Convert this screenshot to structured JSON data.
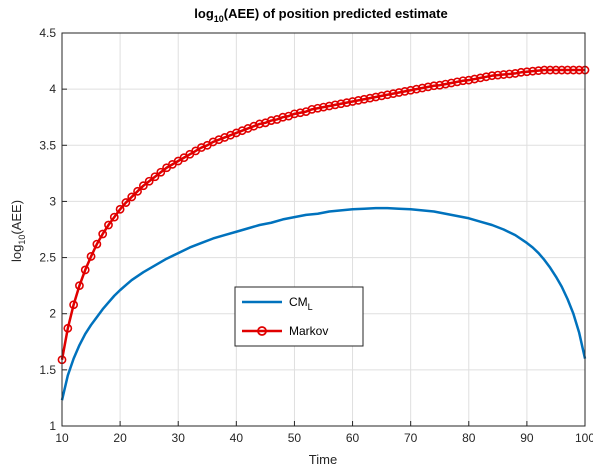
{
  "chart_data": {
    "type": "line",
    "title": {
      "main": "log",
      "sub": "10",
      "rest": "(AEE) of position predicted estimate"
    },
    "xlabel": "Time",
    "ylabel": {
      "main": "log",
      "sub": "10",
      "rest": "(AEE)"
    },
    "xlim": [
      10,
      100
    ],
    "ylim": [
      1,
      4.5
    ],
    "xticks": [
      "10",
      "20",
      "30",
      "40",
      "50",
      "60",
      "70",
      "80",
      "90",
      "100"
    ],
    "yticks": [
      "1",
      "1.5",
      "2",
      "2.5",
      "3",
      "3.5",
      "4",
      "4.5"
    ],
    "grid": true,
    "legend_position": "lower-center",
    "colors": {
      "cml": "#0072BD",
      "markov": "#E00000",
      "grid": "#DFDFDF",
      "axis": "#262626"
    },
    "series": [
      {
        "name": {
          "main": "CM",
          "sub": "L"
        },
        "marker": "none",
        "x": [
          10,
          11,
          12,
          13,
          14,
          15,
          16,
          17,
          18,
          19,
          20,
          22,
          24,
          26,
          28,
          30,
          32,
          34,
          36,
          38,
          40,
          42,
          44,
          46,
          48,
          50,
          52,
          54,
          56,
          58,
          60,
          62,
          64,
          66,
          68,
          70,
          72,
          74,
          76,
          78,
          80,
          82,
          84,
          86,
          88,
          90,
          91,
          92,
          93,
          94,
          95,
          96,
          97,
          98,
          99,
          100
        ],
        "y": [
          1.23,
          1.45,
          1.6,
          1.72,
          1.82,
          1.9,
          1.97,
          2.04,
          2.1,
          2.16,
          2.21,
          2.3,
          2.37,
          2.43,
          2.49,
          2.54,
          2.59,
          2.63,
          2.67,
          2.7,
          2.73,
          2.76,
          2.79,
          2.81,
          2.84,
          2.86,
          2.88,
          2.89,
          2.91,
          2.92,
          2.93,
          2.935,
          2.94,
          2.94,
          2.935,
          2.93,
          2.92,
          2.91,
          2.89,
          2.87,
          2.85,
          2.82,
          2.79,
          2.75,
          2.7,
          2.63,
          2.59,
          2.54,
          2.48,
          2.41,
          2.33,
          2.24,
          2.13,
          2.0,
          1.83,
          1.6
        ]
      },
      {
        "name": "Markov",
        "marker": "circle",
        "x": [
          10,
          11,
          12,
          13,
          14,
          15,
          16,
          17,
          18,
          19,
          20,
          21,
          22,
          23,
          24,
          25,
          26,
          27,
          28,
          29,
          30,
          31,
          32,
          33,
          34,
          35,
          36,
          37,
          38,
          39,
          40,
          41,
          42,
          43,
          44,
          45,
          46,
          47,
          48,
          49,
          50,
          51,
          52,
          53,
          54,
          55,
          56,
          57,
          58,
          59,
          60,
          61,
          62,
          63,
          64,
          65,
          66,
          67,
          68,
          69,
          70,
          71,
          72,
          73,
          74,
          75,
          76,
          77,
          78,
          79,
          80,
          81,
          82,
          83,
          84,
          85,
          86,
          87,
          88,
          89,
          90,
          91,
          92,
          93,
          94,
          95,
          96,
          97,
          98,
          99,
          100
        ],
        "y": [
          1.59,
          1.87,
          2.08,
          2.25,
          2.39,
          2.51,
          2.62,
          2.71,
          2.79,
          2.86,
          2.93,
          2.99,
          3.04,
          3.09,
          3.14,
          3.18,
          3.22,
          3.26,
          3.3,
          3.33,
          3.36,
          3.39,
          3.42,
          3.45,
          3.48,
          3.5,
          3.53,
          3.55,
          3.57,
          3.59,
          3.61,
          3.63,
          3.65,
          3.67,
          3.69,
          3.7,
          3.72,
          3.73,
          3.75,
          3.76,
          3.78,
          3.79,
          3.8,
          3.82,
          3.83,
          3.84,
          3.85,
          3.86,
          3.87,
          3.88,
          3.89,
          3.9,
          3.91,
          3.92,
          3.93,
          3.94,
          3.95,
          3.96,
          3.97,
          3.98,
          3.99,
          4.0,
          4.01,
          4.02,
          4.03,
          4.035,
          4.045,
          4.055,
          4.065,
          4.075,
          4.08,
          4.09,
          4.1,
          4.11,
          4.12,
          4.125,
          4.13,
          4.135,
          4.14,
          4.15,
          4.155,
          4.16,
          4.165,
          4.17,
          4.17,
          4.17,
          4.17,
          4.17,
          4.17,
          4.17,
          4.17
        ]
      }
    ]
  }
}
